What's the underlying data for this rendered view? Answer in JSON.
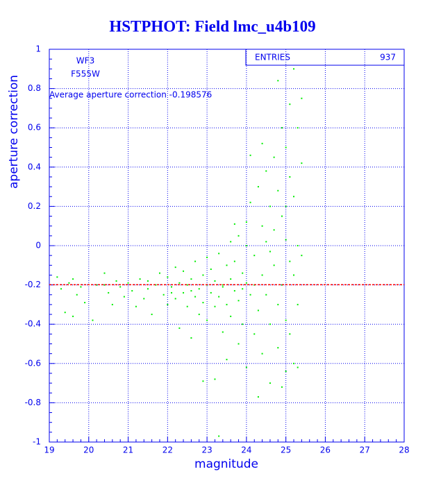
{
  "chart_data": {
    "type": "scatter",
    "title": "HSTPHOT: Field lmc_u4b109",
    "xlabel": "magnitude",
    "ylabel": "aperture correction",
    "annotations": [
      "WF3",
      "F555W"
    ],
    "average_label": "Average aperture correction -0.198576",
    "average": -0.198576,
    "average_color": "#ff0000",
    "stats": {
      "label": "ENTRIES",
      "value": 937
    },
    "color": "#00ee00",
    "xlim": [
      19,
      28
    ],
    "xticks": [
      19,
      20,
      21,
      22,
      23,
      24,
      25,
      26,
      27,
      28
    ],
    "ylim": [
      -1,
      1
    ],
    "yticks": [
      -1,
      -0.8,
      -0.6,
      -0.4,
      -0.2,
      0,
      0.2,
      0.4,
      0.6,
      0.8,
      1
    ],
    "grid": true,
    "x": [
      19.2,
      19.3,
      19.4,
      19.5,
      19.6,
      19.7,
      19.8,
      19.9,
      20.1,
      20.2,
      20.4,
      20.5,
      20.6,
      20.7,
      20.8,
      20.9,
      21.0,
      21.1,
      21.2,
      21.3,
      21.4,
      21.5,
      21.6,
      21.7,
      21.8,
      21.9,
      22.0,
      22.0,
      22.1,
      22.2,
      22.2,
      22.3,
      22.3,
      22.4,
      22.4,
      22.5,
      22.5,
      22.6,
      22.6,
      22.7,
      22.7,
      22.8,
      22.8,
      22.9,
      22.9,
      22.9,
      23.0,
      23.0,
      23.0,
      23.1,
      23.1,
      23.2,
      23.2,
      23.2,
      23.3,
      23.3,
      23.3,
      23.4,
      23.4,
      23.5,
      23.5,
      23.5,
      23.6,
      23.6,
      23.6,
      23.7,
      23.7,
      23.8,
      23.8,
      23.8,
      23.9,
      23.9,
      24.0,
      24.0,
      24.0,
      24.1,
      24.1,
      24.2,
      24.2,
      24.3,
      24.3,
      24.3,
      24.4,
      24.4,
      24.4,
      24.5,
      24.5,
      24.5,
      24.6,
      24.6,
      24.6,
      24.7,
      24.7,
      24.7,
      24.8,
      24.8,
      24.8,
      24.8,
      24.9,
      24.9,
      24.9,
      24.9,
      25.0,
      25.0,
      25.0,
      25.0,
      25.1,
      25.1,
      25.1,
      25.1,
      25.2,
      25.2,
      25.2,
      25.2,
      25.3,
      25.3,
      25.3,
      25.3,
      25.4,
      25.4,
      25.4,
      22.1,
      21.5,
      22.6,
      23.4,
      23.9,
      24.2,
      19.6,
      20.4,
      24.0,
      23.7,
      24.4,
      24.1,
      25.0,
      24.6
    ],
    "values": [
      -0.16,
      -0.22,
      -0.34,
      -0.19,
      -0.36,
      -0.25,
      -0.21,
      -0.29,
      -0.38,
      -0.2,
      -0.14,
      -0.24,
      -0.3,
      -0.18,
      -0.21,
      -0.26,
      -0.19,
      -0.23,
      -0.31,
      -0.17,
      -0.27,
      -0.22,
      -0.35,
      -0.2,
      -0.14,
      -0.25,
      -0.3,
      -0.16,
      -0.21,
      -0.11,
      -0.27,
      -0.19,
      -0.42,
      -0.24,
      -0.13,
      -0.31,
      -0.2,
      -0.47,
      -0.17,
      -0.26,
      -0.08,
      -0.22,
      -0.35,
      -0.15,
      -0.29,
      -0.69,
      -0.2,
      -0.06,
      -0.38,
      -0.24,
      -0.12,
      -0.31,
      -0.18,
      -0.68,
      -0.04,
      -0.26,
      -0.97,
      -0.21,
      -0.44,
      -0.1,
      -0.3,
      -0.58,
      -0.17,
      0.02,
      -0.36,
      -0.23,
      -0.08,
      -0.28,
      0.05,
      -0.5,
      -0.14,
      -0.4,
      -0.19,
      0.12,
      -0.62,
      -0.25,
      0.22,
      -0.05,
      -0.45,
      0.3,
      -0.33,
      -0.77,
      0.1,
      -0.15,
      -0.55,
      0.38,
      -0.25,
      0.02,
      0.2,
      -0.4,
      -0.7,
      0.45,
      -0.1,
      0.08,
      0.84,
      0.28,
      -0.3,
      -0.52,
      0.6,
      0.15,
      -0.2,
      -0.72,
      0.5,
      0.03,
      -0.38,
      -0.64,
      0.72,
      0.35,
      -0.08,
      -0.45,
      0.9,
      0.25,
      -0.15,
      -0.6,
      0.6,
      0.0,
      -0.3,
      -0.62,
      0.42,
      -0.05,
      0.75,
      -0.24,
      -0.18,
      -0.23,
      -0.2,
      -0.22,
      -0.2,
      -0.17,
      -0.2,
      0.0,
      0.11,
      0.52,
      0.46,
      0.2,
      -0.03
    ]
  }
}
